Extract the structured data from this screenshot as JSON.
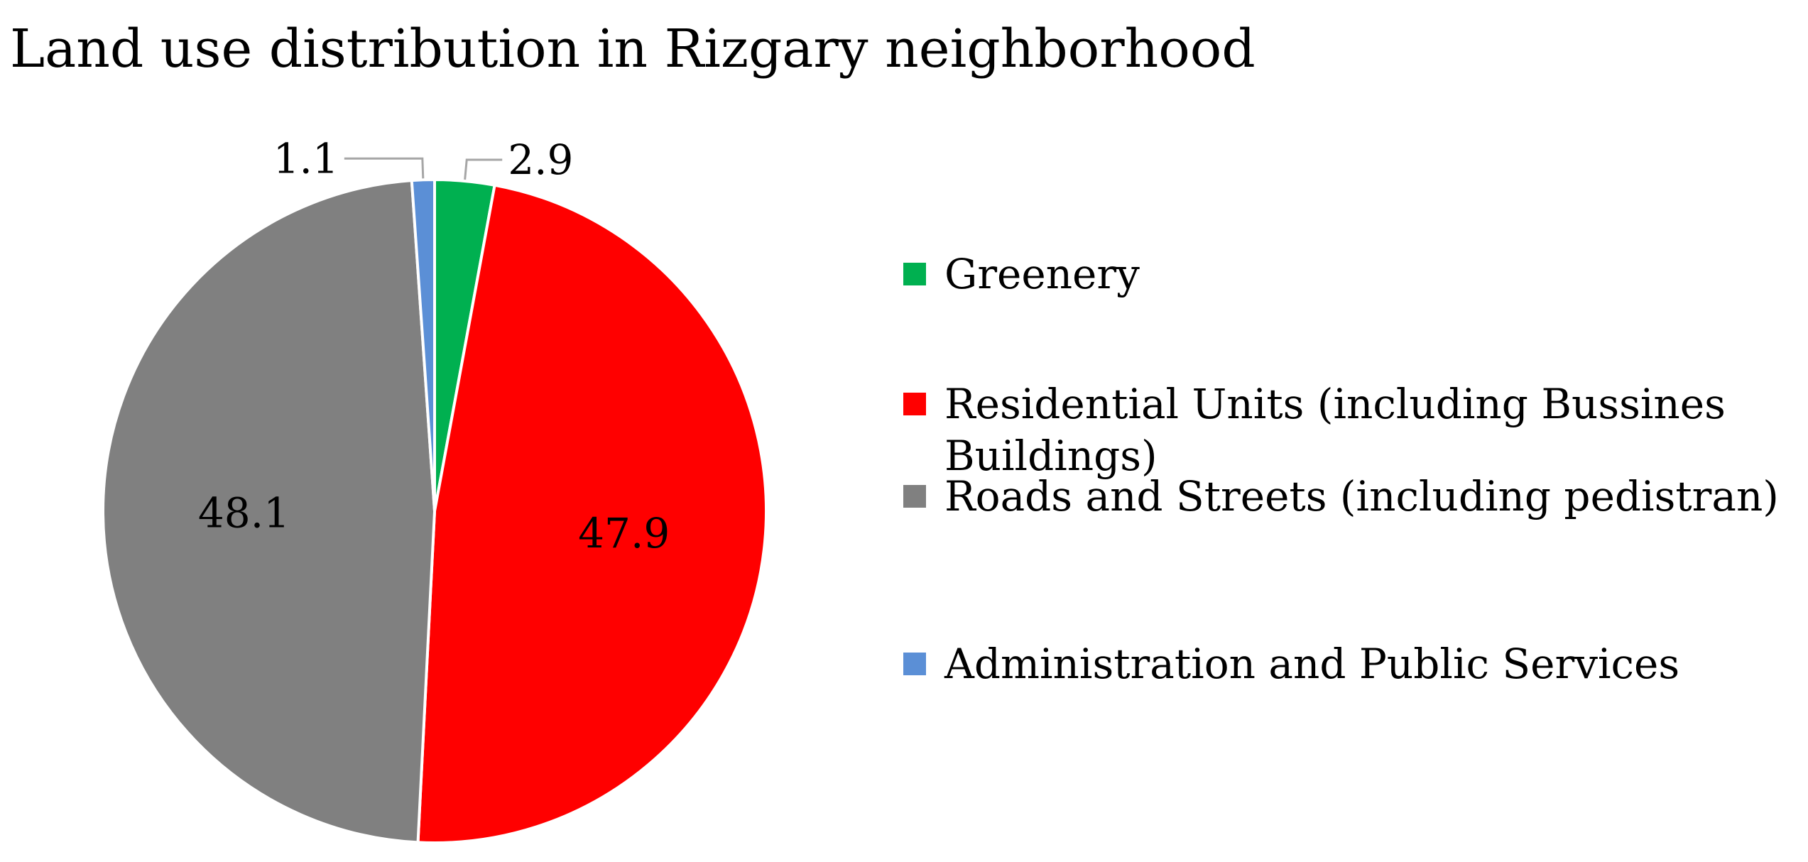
{
  "chart_data": {
    "type": "pie",
    "title": "Land use distribution in Rizgary neighborhood",
    "start_angle_deg": 0,
    "direction": "clockwise",
    "legend_position": "right",
    "slices": [
      {
        "label": "Greenery",
        "legend_lines": [
          "Greenery"
        ],
        "value": 2.9,
        "value_label": "2.9",
        "color": "#00b050"
      },
      {
        "label": "Residential Units (including Bussines Buildings)",
        "legend_lines": [
          "Residential Units (including Bussines",
          "Buildings)"
        ],
        "value": 47.9,
        "value_label": "47.9",
        "color": "#ff0000"
      },
      {
        "label": "Roads and Streets (including pedistran)",
        "legend_lines": [
          "Roads and Streets (including pedistran)"
        ],
        "value": 48.1,
        "value_label": "48.1",
        "color": "#808080"
      },
      {
        "label": "Administration and Public Services",
        "legend_lines": [
          "Administration and Public Services"
        ],
        "value": 1.1,
        "value_label": "1.1",
        "color": "#5b8fd6"
      }
    ]
  }
}
